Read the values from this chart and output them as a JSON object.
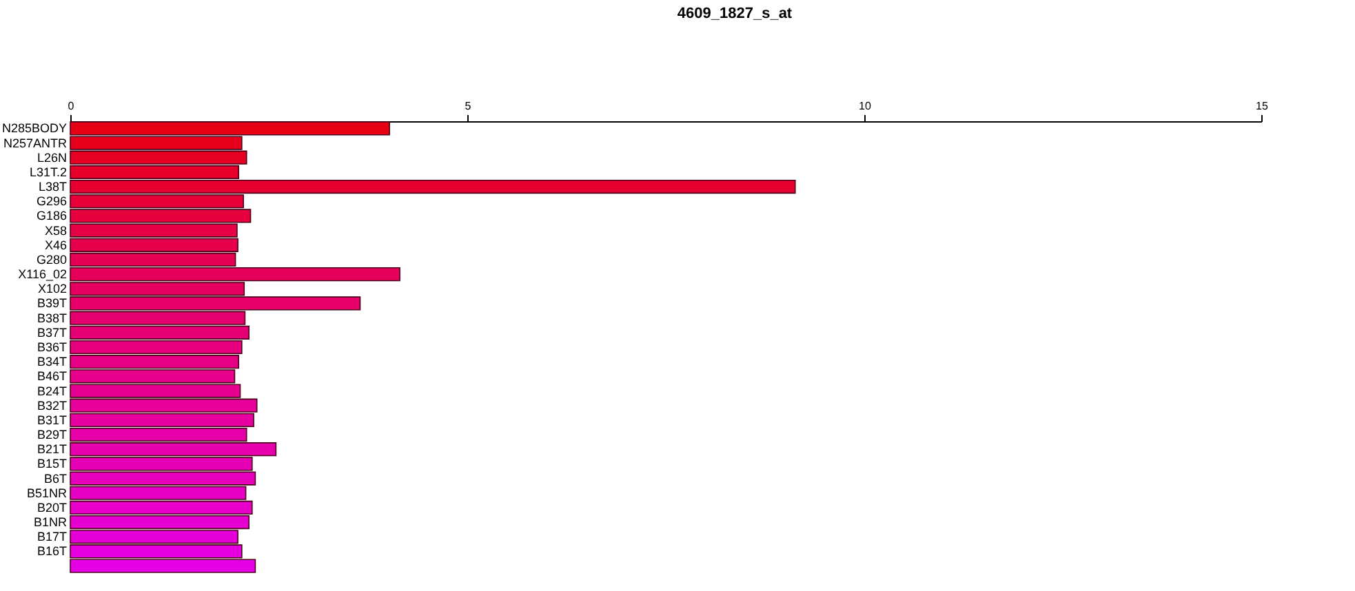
{
  "chart_data": {
    "type": "bar",
    "orientation": "horizontal",
    "title": "4609_1827_s_at",
    "categories": [
      "N285BODY",
      "N257ANTR",
      "L26N",
      "L31T.2",
      "L38T",
      "G296",
      "G186",
      "X58",
      "X46",
      "G280",
      "X116_02",
      "X102",
      "B39T",
      "B38T",
      "B37T",
      "B36T",
      "B34T",
      "B46T",
      "B24T",
      "B32T",
      "B31T",
      "B29T",
      "B21T",
      "B15T",
      "B6T",
      "B51NR",
      "B20T",
      "B1NR",
      "B17T",
      "B16T",
      null
    ],
    "values": [
      4.02,
      2.16,
      2.22,
      2.12,
      9.13,
      2.18,
      2.27,
      2.1,
      2.11,
      2.08,
      4.15,
      2.19,
      3.65,
      2.2,
      2.25,
      2.16,
      2.12,
      2.07,
      2.14,
      2.35,
      2.31,
      2.22,
      2.59,
      2.29,
      2.33,
      2.21,
      2.29,
      2.25,
      2.11,
      2.16,
      2.33
    ],
    "colors": [
      "#e60014",
      "#e6001b",
      "#e60022",
      "#e60029",
      "#e60030",
      "#e60037",
      "#e6003e",
      "#e60045",
      "#e6004c",
      "#e60053",
      "#e6005a",
      "#e60061",
      "#e60068",
      "#e6006f",
      "#e60076",
      "#e6007d",
      "#e60084",
      "#e6008b",
      "#e60092",
      "#e60099",
      "#e600a0",
      "#e600a7",
      "#e600ae",
      "#e600b5",
      "#e600bc",
      "#e600c3",
      "#e600ca",
      "#e600d1",
      "#e600d8",
      "#e600df",
      "#e600e6"
    ],
    "xlim": [
      0,
      15
    ],
    "xticks": [
      0,
      5,
      10,
      15
    ],
    "grid": false,
    "legend": false
  }
}
